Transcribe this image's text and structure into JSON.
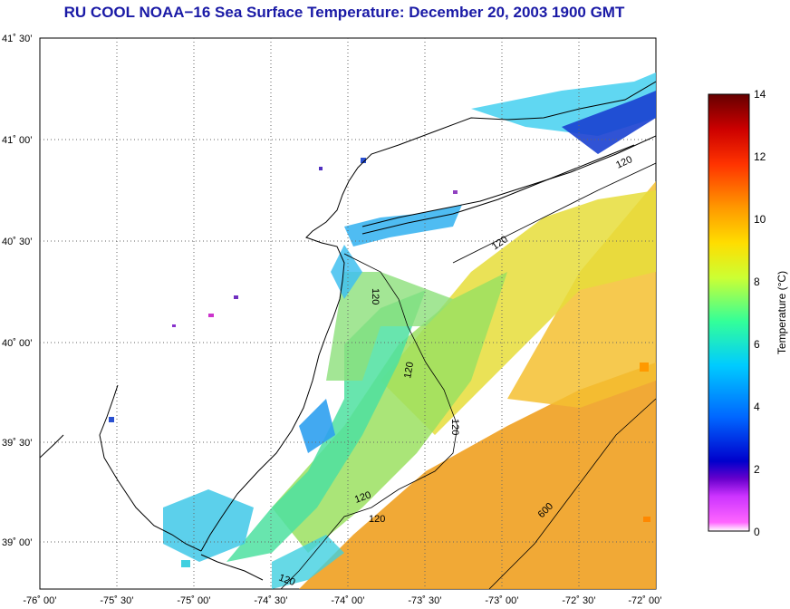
{
  "title": "RU COOL  NOAA−16  Sea Surface Temperature:  December 20, 2003 1900 GMT",
  "map": {
    "lat_ticks": [
      "41˚ 30’",
      "41˚ 00’",
      "40˚ 30’",
      "40˚ 00’",
      "39˚ 30’",
      "39˚ 00’"
    ],
    "lon_ticks": [
      "-76˚ 00’",
      "-75˚ 30’",
      "-75˚ 00’",
      "-74˚ 30’",
      "-74˚ 00’",
      "-73˚ 30’",
      "-73˚ 00’",
      "-72˚ 30’",
      "-72˚ 00’"
    ],
    "contour_labels": [
      "120",
      "120",
      "120",
      "120",
      "120",
      "120",
      "120",
      "120",
      "600"
    ],
    "land_color": "#ffffff",
    "coast_color": "#000000"
  },
  "colorbar": {
    "label": "Temperature (°C)",
    "ticks": [
      "14",
      "12",
      "10",
      "8",
      "6",
      "4",
      "2",
      "0"
    ],
    "min": 0,
    "max": 14,
    "colors": [
      "#ff66ff",
      "#8c1aff",
      "#0000cc",
      "#0066ff",
      "#00ccff",
      "#33ff99",
      "#ccff33",
      "#ffcc00",
      "#ff8800",
      "#ff2200",
      "#cc0000",
      "#800000"
    ]
  }
}
